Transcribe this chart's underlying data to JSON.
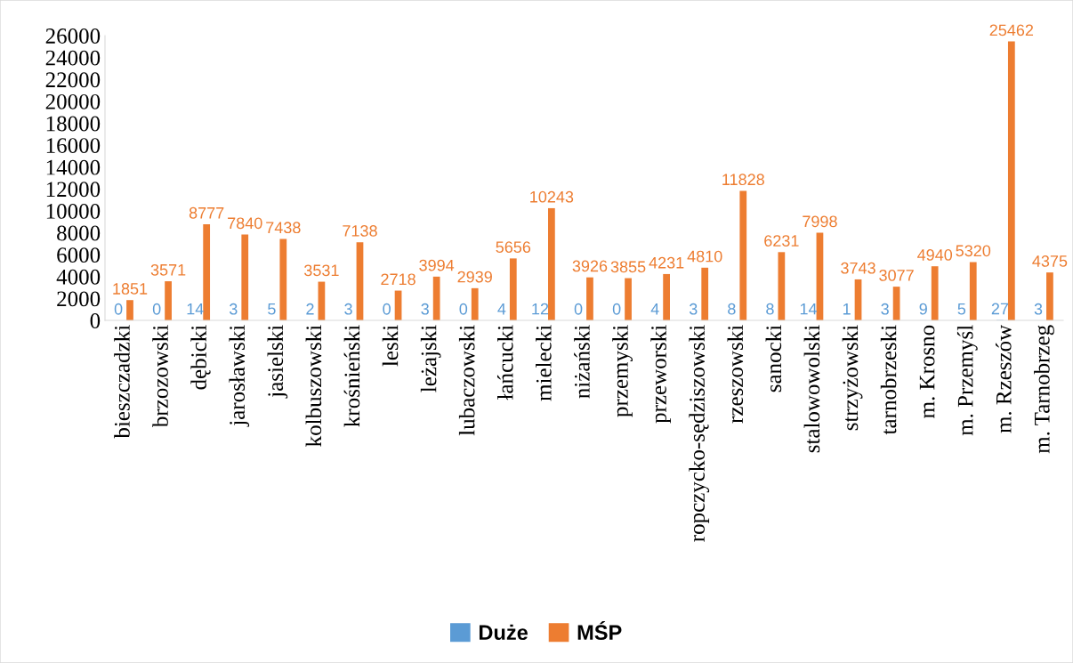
{
  "chart_data": {
    "type": "bar",
    "categories": [
      "bieszczadzki",
      "brzozowski",
      "dębicki",
      "jarosławski",
      "jasielski",
      "kolbuszowski",
      "krośnieński",
      "leski",
      "leżajski",
      "lubaczowski",
      "łańcucki",
      "mielecki",
      "niżański",
      "przemyski",
      "przeworski",
      "ropczycko-sędziszowski",
      "rzeszowski",
      "sanocki",
      "stalowowolski",
      "strzyżowski",
      "tarnobrzeski",
      "m. Krosno",
      "m. Przemyśl",
      "m. Rzeszów",
      "m. Tarnobrzeg"
    ],
    "series": [
      {
        "name": "Duże",
        "color": "#5b9bd5",
        "values": [
          0,
          0,
          14,
          3,
          5,
          2,
          3,
          0,
          3,
          0,
          4,
          12,
          0,
          0,
          4,
          3,
          8,
          8,
          14,
          1,
          3,
          9,
          5,
          27,
          3
        ]
      },
      {
        "name": "MŚP",
        "color": "#ed7d31",
        "values": [
          1851,
          3571,
          8777,
          7840,
          7438,
          3531,
          7138,
          2718,
          3994,
          2939,
          5656,
          10243,
          3926,
          3855,
          4231,
          4810,
          11828,
          6231,
          7998,
          3743,
          3077,
          4940,
          5320,
          25462,
          4375
        ]
      }
    ],
    "ylim": [
      0,
      26000
    ],
    "yticks": [
      0,
      2000,
      4000,
      6000,
      8000,
      10000,
      12000,
      14000,
      16000,
      18000,
      20000,
      22000,
      24000,
      26000
    ],
    "data_labels": true,
    "legend": "bottom",
    "grid": false
  }
}
